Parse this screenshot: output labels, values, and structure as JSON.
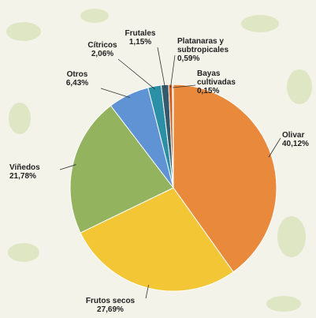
{
  "chart_data": {
    "type": "pie",
    "categories": [
      "Olivar",
      "Frutos secos",
      "Viñedos",
      "Otros",
      "Cítricos",
      "Frutales",
      "Platanaras y subtropicales",
      "Bayas cultivadas"
    ],
    "values": [
      40.12,
      27.69,
      21.78,
      6.43,
      2.06,
      1.15,
      0.59,
      0.15
    ],
    "value_labels": [
      "40,12%",
      "27,69%",
      "21,78%",
      "6,43%",
      "2,06%",
      "1,15%",
      "0,59%",
      "0,15%"
    ],
    "colors": [
      "#e8893c",
      "#f2c634",
      "#93b35e",
      "#5f93d3",
      "#2b8fa6",
      "#355a6b",
      "#d25e1f",
      "#555555"
    ]
  }
}
